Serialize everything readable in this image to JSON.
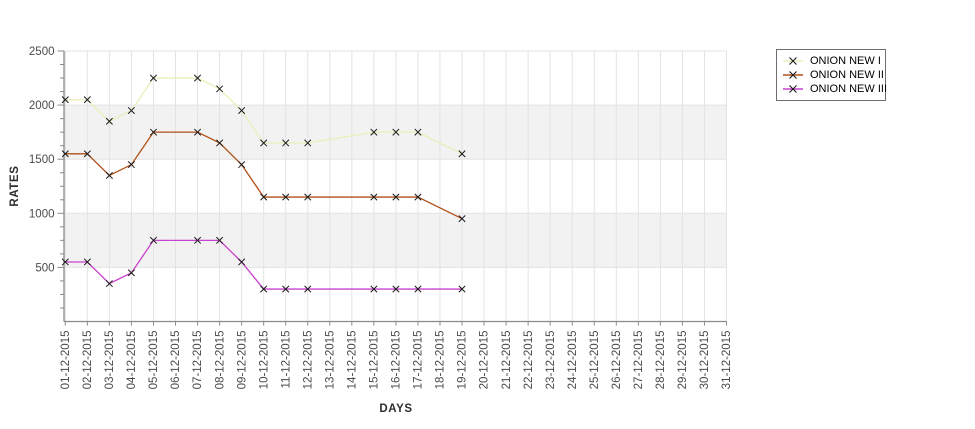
{
  "figure": {
    "y_axis_title": "RATES",
    "x_axis_title": "DAYS"
  },
  "chart_data": {
    "type": "line",
    "title": "",
    "xlabel": "DAYS",
    "ylabel": "RATES",
    "ylim": [
      0,
      2500
    ],
    "y_major_ticks": [
      500,
      1000,
      1500,
      2000,
      2500
    ],
    "y_minor_step": 125,
    "grid": true,
    "band_fill_ranges": [
      [
        500,
        1000
      ],
      [
        1500,
        2000
      ]
    ],
    "legend_position": "outside-top-right",
    "marker": "x",
    "x_tick_labels": [
      "01-12-2015",
      "02-12-2015",
      "03-12-2015",
      "04-12-2015",
      "05-12-2015",
      "06-12-2015",
      "07-12-2015",
      "08-12-2015",
      "09-12-2015",
      "10-12-2015",
      "11-12-2015",
      "12-12-2015",
      "13-12-2015",
      "14-12-2015",
      "15-12-2015",
      "16-12-2015",
      "17-12-2015",
      "18-12-2015",
      "19-12-2015",
      "20-12-2015",
      "21-12-2015",
      "22-12-2015",
      "23-12-2015",
      "24-12-2015",
      "25-12-2015",
      "26-12-2015",
      "27-12-2015",
      "28-12-2015",
      "29-12-2015",
      "30-12-2015",
      "31-12-2015"
    ],
    "x": [
      "01-12-2015",
      "02-12-2015",
      "03-12-2015",
      "04-12-2015",
      "05-12-2015",
      "07-12-2015",
      "08-12-2015",
      "09-12-2015",
      "10-12-2015",
      "11-12-2015",
      "12-12-2015",
      "15-12-2015",
      "16-12-2015",
      "17-12-2015",
      "19-12-2015"
    ],
    "series": [
      {
        "name": "ONION NEW I",
        "color": "#ecedb9",
        "values": [
          2050,
          2050,
          1850,
          1950,
          2250,
          2250,
          2150,
          1950,
          1650,
          1650,
          1650,
          1750,
          1750,
          1750,
          1550
        ]
      },
      {
        "name": "ONION NEW II",
        "color": "#b25018",
        "values": [
          1550,
          1550,
          1350,
          1450,
          1750,
          1750,
          1650,
          1450,
          1150,
          1150,
          1150,
          1150,
          1150,
          1150,
          950
        ]
      },
      {
        "name": "ONION NEW III",
        "color": "#c742ce",
        "values": [
          550,
          550,
          350,
          450,
          750,
          750,
          750,
          550,
          300,
          300,
          300,
          300,
          300,
          300,
          300
        ]
      }
    ]
  },
  "theme": {
    "background": "#ffffff",
    "band_fill": "#f2f2f2",
    "gridline": "#e3e3e3",
    "spine": "#8a8a8a",
    "tick_label_color": "#4b4b4b",
    "axis_title_color": "#2e2e2e",
    "marker_color": "#1a1a1a",
    "legend_border": "#6e6e6e",
    "legend_text": "#000000"
  }
}
